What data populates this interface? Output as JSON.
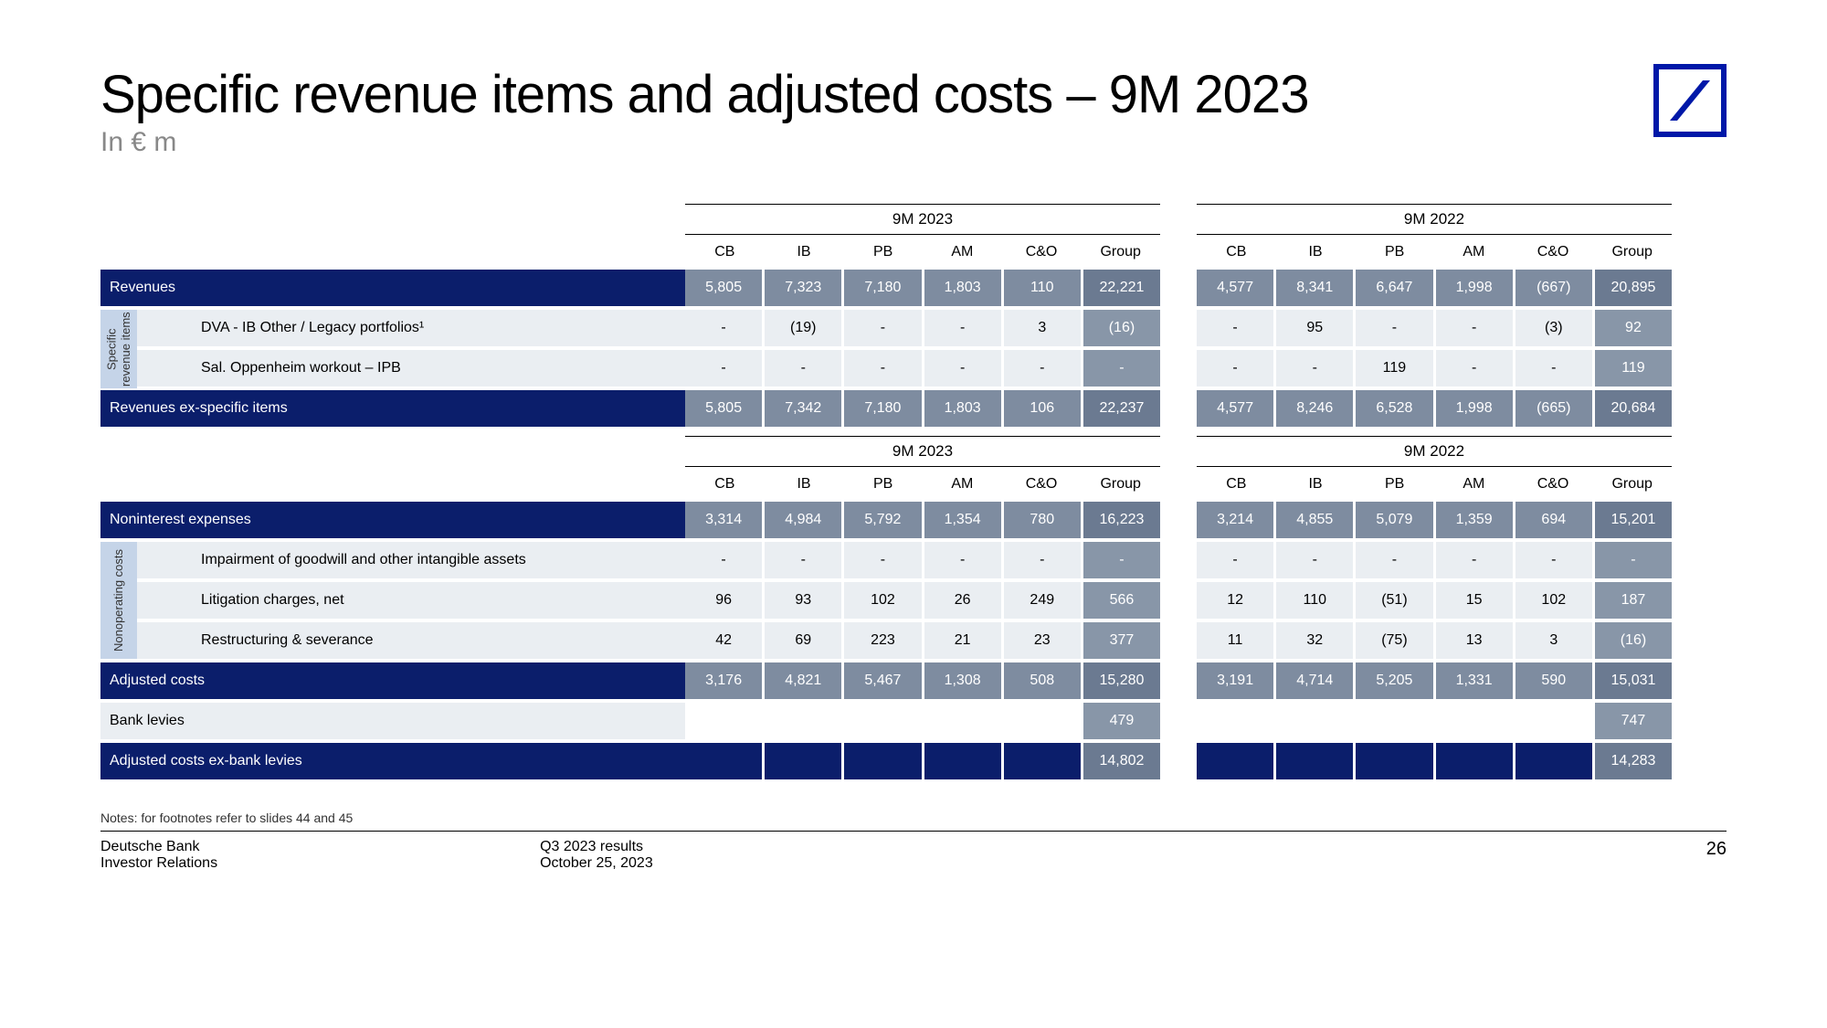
{
  "header": {
    "title": "Specific revenue items and adjusted costs – 9M 2023",
    "subtitle": "In € m"
  },
  "periods": {
    "left": "9M 2023",
    "right": "9M 2022"
  },
  "columns": [
    "CB",
    "IB",
    "PB",
    "AM",
    "C&O",
    "Group"
  ],
  "section1": {
    "side_label": "Specific\nrevenue items",
    "rows": [
      {
        "type": "header",
        "label": "Revenues",
        "y2023": [
          "5,805",
          "7,323",
          "7,180",
          "1,803",
          "110",
          "22,221"
        ],
        "y2022": [
          "4,577",
          "8,341",
          "6,647",
          "1,998",
          "(667)",
          "20,895"
        ]
      },
      {
        "type": "sub",
        "label": "DVA - IB Other / Legacy portfolios¹",
        "y2023": [
          "-",
          "(19)",
          "-",
          "-",
          "3",
          "(16)"
        ],
        "y2022": [
          "-",
          "95",
          "-",
          "-",
          "(3)",
          "92"
        ]
      },
      {
        "type": "sub",
        "label": "Sal. Oppenheim workout – IPB",
        "y2023": [
          "-",
          "-",
          "-",
          "-",
          "-",
          "-"
        ],
        "y2022": [
          "-",
          "-",
          "119",
          "-",
          "-",
          "119"
        ]
      },
      {
        "type": "header",
        "label": "Revenues ex-specific items",
        "y2023": [
          "5,805",
          "7,342",
          "7,180",
          "1,803",
          "106",
          "22,237"
        ],
        "y2022": [
          "4,577",
          "8,246",
          "6,528",
          "1,998",
          "(665)",
          "20,684"
        ]
      }
    ]
  },
  "section2": {
    "side_label": "Nonoperating\ncosts",
    "rows": [
      {
        "type": "header",
        "label": "Noninterest expenses",
        "y2023": [
          "3,314",
          "4,984",
          "5,792",
          "1,354",
          "780",
          "16,223"
        ],
        "y2022": [
          "3,214",
          "4,855",
          "5,079",
          "1,359",
          "694",
          "15,201"
        ]
      },
      {
        "type": "sub",
        "label": "Impairment of goodwill and other intangible assets",
        "y2023": [
          "-",
          "-",
          "-",
          "-",
          "-",
          "-"
        ],
        "y2022": [
          "-",
          "-",
          "-",
          "-",
          "-",
          "-"
        ]
      },
      {
        "type": "sub",
        "label": "Litigation charges, net",
        "y2023": [
          "96",
          "93",
          "102",
          "26",
          "249",
          "566"
        ],
        "y2022": [
          "12",
          "110",
          "(51)",
          "15",
          "102",
          "187"
        ]
      },
      {
        "type": "sub",
        "label": "Restructuring & severance",
        "y2023": [
          "42",
          "69",
          "223",
          "21",
          "23",
          "377"
        ],
        "y2022": [
          "11",
          "32",
          "(75)",
          "13",
          "3",
          "(16)"
        ]
      },
      {
        "type": "header",
        "label": "Adjusted costs",
        "y2023": [
          "3,176",
          "4,821",
          "5,467",
          "1,308",
          "508",
          "15,280"
        ],
        "y2022": [
          "3,191",
          "4,714",
          "5,205",
          "1,331",
          "590",
          "15,031"
        ]
      },
      {
        "type": "plain",
        "label": "Bank levies",
        "y2023": [
          "",
          "",
          "",
          "",
          "",
          "479"
        ],
        "y2022": [
          "",
          "",
          "",
          "",
          "",
          "747"
        ]
      },
      {
        "type": "header",
        "label": "Adjusted costs ex-bank levies",
        "y2023": [
          "",
          "",
          "",
          "",
          "",
          "14,802"
        ],
        "y2022": [
          "",
          "",
          "",
          "",
          "",
          "14,283"
        ]
      }
    ]
  },
  "notes": "Notes: for footnotes refer to slides 44 and 45",
  "footer": {
    "left1": "Deutsche Bank",
    "left2": "Investor Relations",
    "center1": "Q3 2023 results",
    "center2": "October 25, 2023",
    "page": "26"
  }
}
